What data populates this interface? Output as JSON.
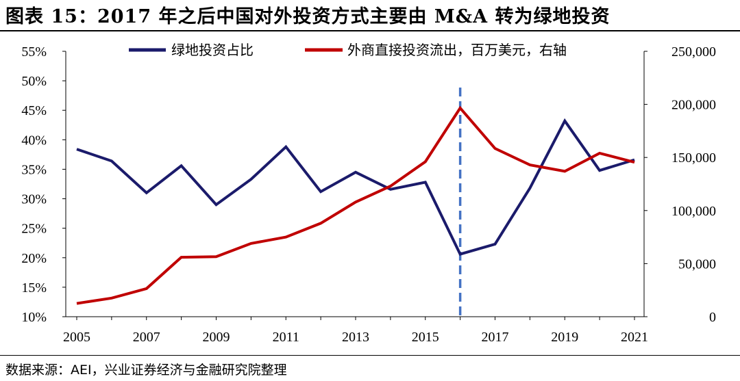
{
  "title": "图表 15：2017 年之后中国对外投资方式主要由 M&A 转为绿地投资",
  "source": "数据来源：AEI，兴业证券经济与金融研究院整理",
  "chart_data": {
    "type": "line",
    "title": "2017 年之后中国对外投资方式主要由 M&A 转为绿地投资",
    "x": [
      2005,
      2006,
      2007,
      2008,
      2009,
      2010,
      2011,
      2012,
      2013,
      2014,
      2015,
      2016,
      2017,
      2018,
      2019,
      2020,
      2021
    ],
    "x_tick_labels": [
      "2005",
      "2007",
      "2009",
      "2011",
      "2013",
      "2015",
      "2017",
      "2019",
      "2021"
    ],
    "x_tick_values": [
      2005,
      2007,
      2009,
      2011,
      2013,
      2015,
      2017,
      2019,
      2021
    ],
    "left_axis": {
      "ylim": [
        10,
        55
      ],
      "tick_values": [
        10,
        15,
        20,
        25,
        30,
        35,
        40,
        45,
        50,
        55
      ],
      "tick_labels": [
        "10%",
        "15%",
        "20%",
        "25%",
        "30%",
        "35%",
        "40%",
        "45%",
        "50%",
        "55%"
      ]
    },
    "right_axis": {
      "ylim": [
        0,
        250000
      ],
      "tick_values": [
        0,
        50000,
        100000,
        150000,
        200000,
        250000
      ],
      "tick_labels": [
        "0",
        "50,000",
        "100,000",
        "150,000",
        "200,000",
        "250,000"
      ]
    },
    "series": [
      {
        "name": "绿地投资占比",
        "axis": "left",
        "color": "#1B1B6B",
        "values": [
          38.4,
          36.4,
          31.0,
          35.6,
          29.0,
          33.3,
          38.8,
          31.2,
          34.5,
          31.6,
          32.8,
          20.6,
          22.3,
          31.8,
          43.2,
          34.8,
          36.6
        ]
      },
      {
        "name": "外商直接投资流出，百万美元，右轴",
        "axis": "right",
        "color": "#C00000",
        "values": [
          12500,
          17500,
          26500,
          56000,
          56500,
          69000,
          75000,
          88000,
          108000,
          123000,
          146000,
          196500,
          158500,
          143000,
          137000,
          154000,
          145500
        ]
      }
    ],
    "reference_line": {
      "x": 2016,
      "style": "dashed",
      "color": "#4472C4"
    },
    "legend_position": "top"
  }
}
